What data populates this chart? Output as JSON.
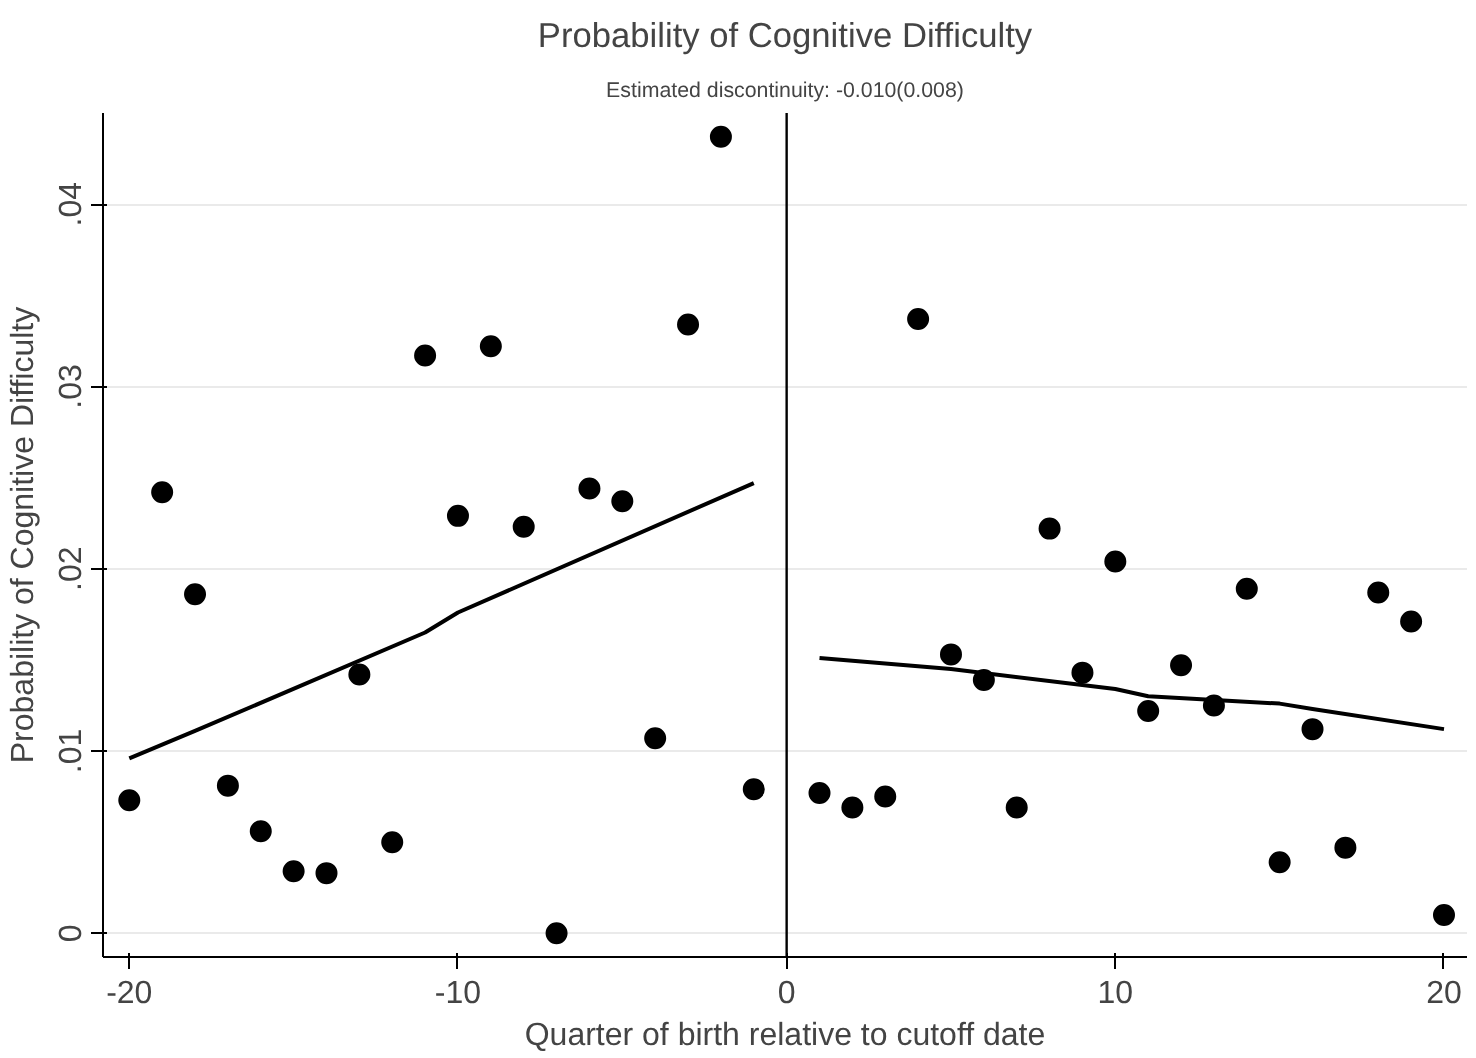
{
  "chart_data": {
    "type": "scatter",
    "title": "Probability of Cognitive Difficulty",
    "subtitle": "Estimated discontinuity: -0.010(0.008)",
    "xlabel": "Quarter of birth relative to cutoff date",
    "ylabel": "Probability of Cognitive Difficulty",
    "series": [
      {
        "color": "#000000",
        "marker": "circle",
        "x": [
          -20,
          -19,
          -18,
          -17,
          -16,
          -15,
          -14,
          -13,
          -12,
          -11,
          -10,
          -9,
          -8,
          -7,
          -6,
          -5,
          -4,
          -3,
          -2,
          -1,
          1,
          2,
          3,
          4,
          5,
          6,
          7,
          8,
          9,
          10,
          11,
          12,
          13,
          14,
          15,
          16,
          17,
          18,
          19,
          20
        ],
        "values": [
          0.0073,
          0.0242,
          0.0186,
          0.0081,
          0.0056,
          0.0034,
          0.0033,
          0.0142,
          0.005,
          0.0317,
          0.0229,
          0.0322,
          0.0223,
          0.0,
          0.0244,
          0.0237,
          0.0107,
          0.0334,
          0.0437,
          0.0079,
          0.0077,
          0.0069,
          0.0075,
          0.0337,
          0.0153,
          0.0139,
          0.0069,
          0.0222,
          0.0143,
          0.0204,
          0.0122,
          0.0147,
          0.0125,
          0.0189,
          0.0039,
          0.0112,
          0.0047,
          0.0187,
          0.0171,
          0.001
        ]
      },
      {
        "type": "line",
        "color": "#000000",
        "marker": "none",
        "x": [
          -20,
          -18,
          -11,
          -10,
          -1
        ],
        "values": [
          0.0096,
          0.0111,
          0.0165,
          0.0176,
          0.0247
        ]
      },
      {
        "type": "line",
        "color": "#000000",
        "marker": "none",
        "x": [
          1,
          5,
          10,
          11,
          15,
          16,
          20
        ],
        "values": [
          0.0151,
          0.0145,
          0.0134,
          0.013,
          0.0126,
          0.0123,
          0.0112
        ]
      }
    ],
    "xlim": [
      -20.8,
      20.7
    ],
    "ylim": [
      -0.0013,
      0.045
    ],
    "xticks": [
      -20,
      -10,
      0,
      10,
      20
    ],
    "yticks": [
      0,
      {
        "value": 0.01,
        "label": ".01"
      },
      {
        "value": 0.02,
        "label": ".02"
      },
      {
        "value": 0.03,
        "label": ".03"
      },
      {
        "value": 0.04,
        "label": ".04"
      }
    ],
    "ref_lines": [
      {
        "axis": "x",
        "value": 0,
        "color": "#000000",
        "line_style": "solid"
      }
    ],
    "grid": "y"
  }
}
